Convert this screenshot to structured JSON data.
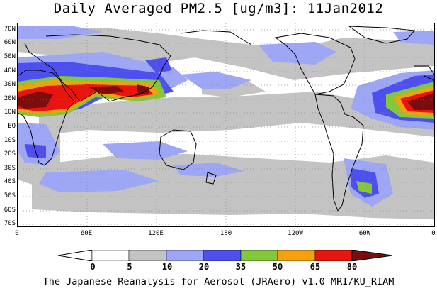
{
  "title": "Daily Averaged PM2.5 [ug/m3]: 11Jan2012",
  "lat_labels": [
    "70N",
    "60N",
    "50N",
    "40N",
    "30N",
    "20N",
    "10N",
    "EQ",
    "10S",
    "20S",
    "30S",
    "40S",
    "50S",
    "60S",
    "70S"
  ],
  "lon_labels": [
    "0",
    "60E",
    "120E",
    "180",
    "120W",
    "60W",
    "0"
  ],
  "legend": {
    "levels": [
      "0",
      "5",
      "10",
      "20",
      "35",
      "50",
      "65",
      "80"
    ],
    "colors": [
      "#ffffff",
      "#c3c3c3",
      "#9ea6f6",
      "#4d4fef",
      "#83c83a",
      "#f5a00d",
      "#e8140d",
      "#7b0d0d"
    ]
  },
  "credit": "The Japanese Reanalysis for Aerosol (JRAero) v1.0 MRI/KU_RIAM"
}
